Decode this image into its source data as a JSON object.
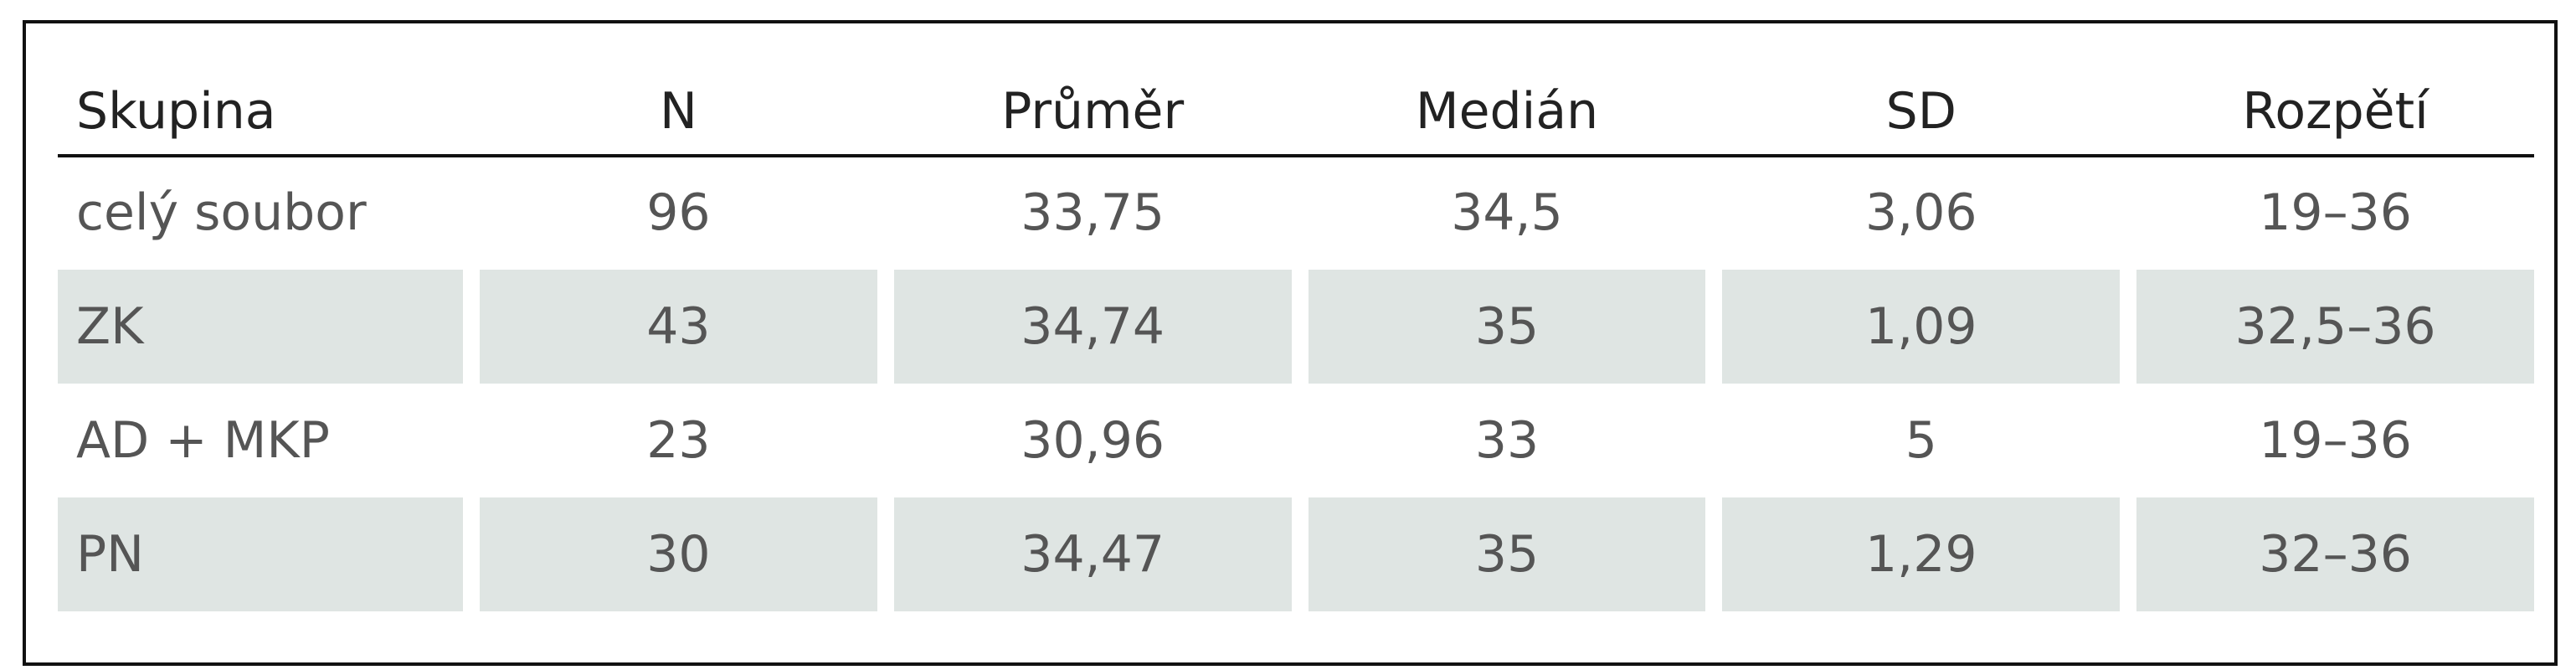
{
  "table": {
    "header": [
      "Skupina",
      "N",
      "Průměr",
      "Medián",
      "SD",
      "Rozpětí"
    ],
    "rows": [
      [
        "celý soubor",
        "96",
        "33,75",
        "34,5",
        "3,06",
        "19–36"
      ],
      [
        "ZK",
        "43",
        "34,74",
        "35",
        "1,09",
        "32,5–36"
      ],
      [
        "AD + MKP",
        "23",
        "30,96",
        "33",
        "5",
        "19–36"
      ],
      [
        "PN",
        "30",
        "34,47",
        "35",
        "1,29",
        "32–36"
      ]
    ]
  }
}
